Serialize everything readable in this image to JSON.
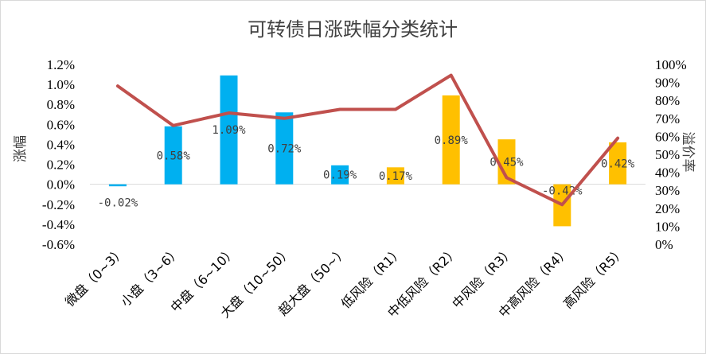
{
  "chart_data": {
    "type": "bar+line",
    "title": "可转债日涨跌幅分类统计",
    "ylabel": "涨幅",
    "y2label": "溢价率",
    "ylim": [
      -0.6,
      1.2
    ],
    "y2lim": [
      0,
      100
    ],
    "yticks": [
      "1.2%",
      "1.0%",
      "0.8%",
      "0.6%",
      "0.4%",
      "0.2%",
      "0.0%",
      "-0.2%",
      "-0.4%",
      "-0.6%"
    ],
    "y2ticks": [
      "100%",
      "90%",
      "80%",
      "70%",
      "60%",
      "50%",
      "40%",
      "30%",
      "20%",
      "10%",
      "0%"
    ],
    "categories": [
      "微盘（0~3）",
      "小盘（3~6）",
      "中盘（6~10）",
      "大盘（10~50）",
      "超大盘（50~）",
      "低风险（R1）",
      "中低风险（R2）",
      "中风险（R3）",
      "中高风险（R4）",
      "高风险（R5）"
    ],
    "series": [
      {
        "kind": "bar",
        "values": [
          -0.02,
          0.58,
          1.09,
          0.72,
          0.19,
          0.17,
          0.89,
          0.45,
          -0.42,
          0.42
        ],
        "labels": [
          "-0.02%",
          "0.58%",
          "1.09%",
          "0.72%",
          "0.19%",
          "0.17%",
          "0.89%",
          "0.45%",
          "-0.42%",
          "0.42%"
        ],
        "colors": [
          "#00b0f0",
          "#00b0f0",
          "#00b0f0",
          "#00b0f0",
          "#00b0f0",
          "#ffc000",
          "#ffc000",
          "#ffc000",
          "#ffc000",
          "#ffc000"
        ]
      },
      {
        "kind": "line",
        "axis": "right",
        "color": "#c0504d",
        "values": [
          88,
          66,
          73,
          70,
          75,
          75,
          94,
          37,
          22,
          59
        ]
      }
    ],
    "grid": false,
    "legend": "none"
  }
}
